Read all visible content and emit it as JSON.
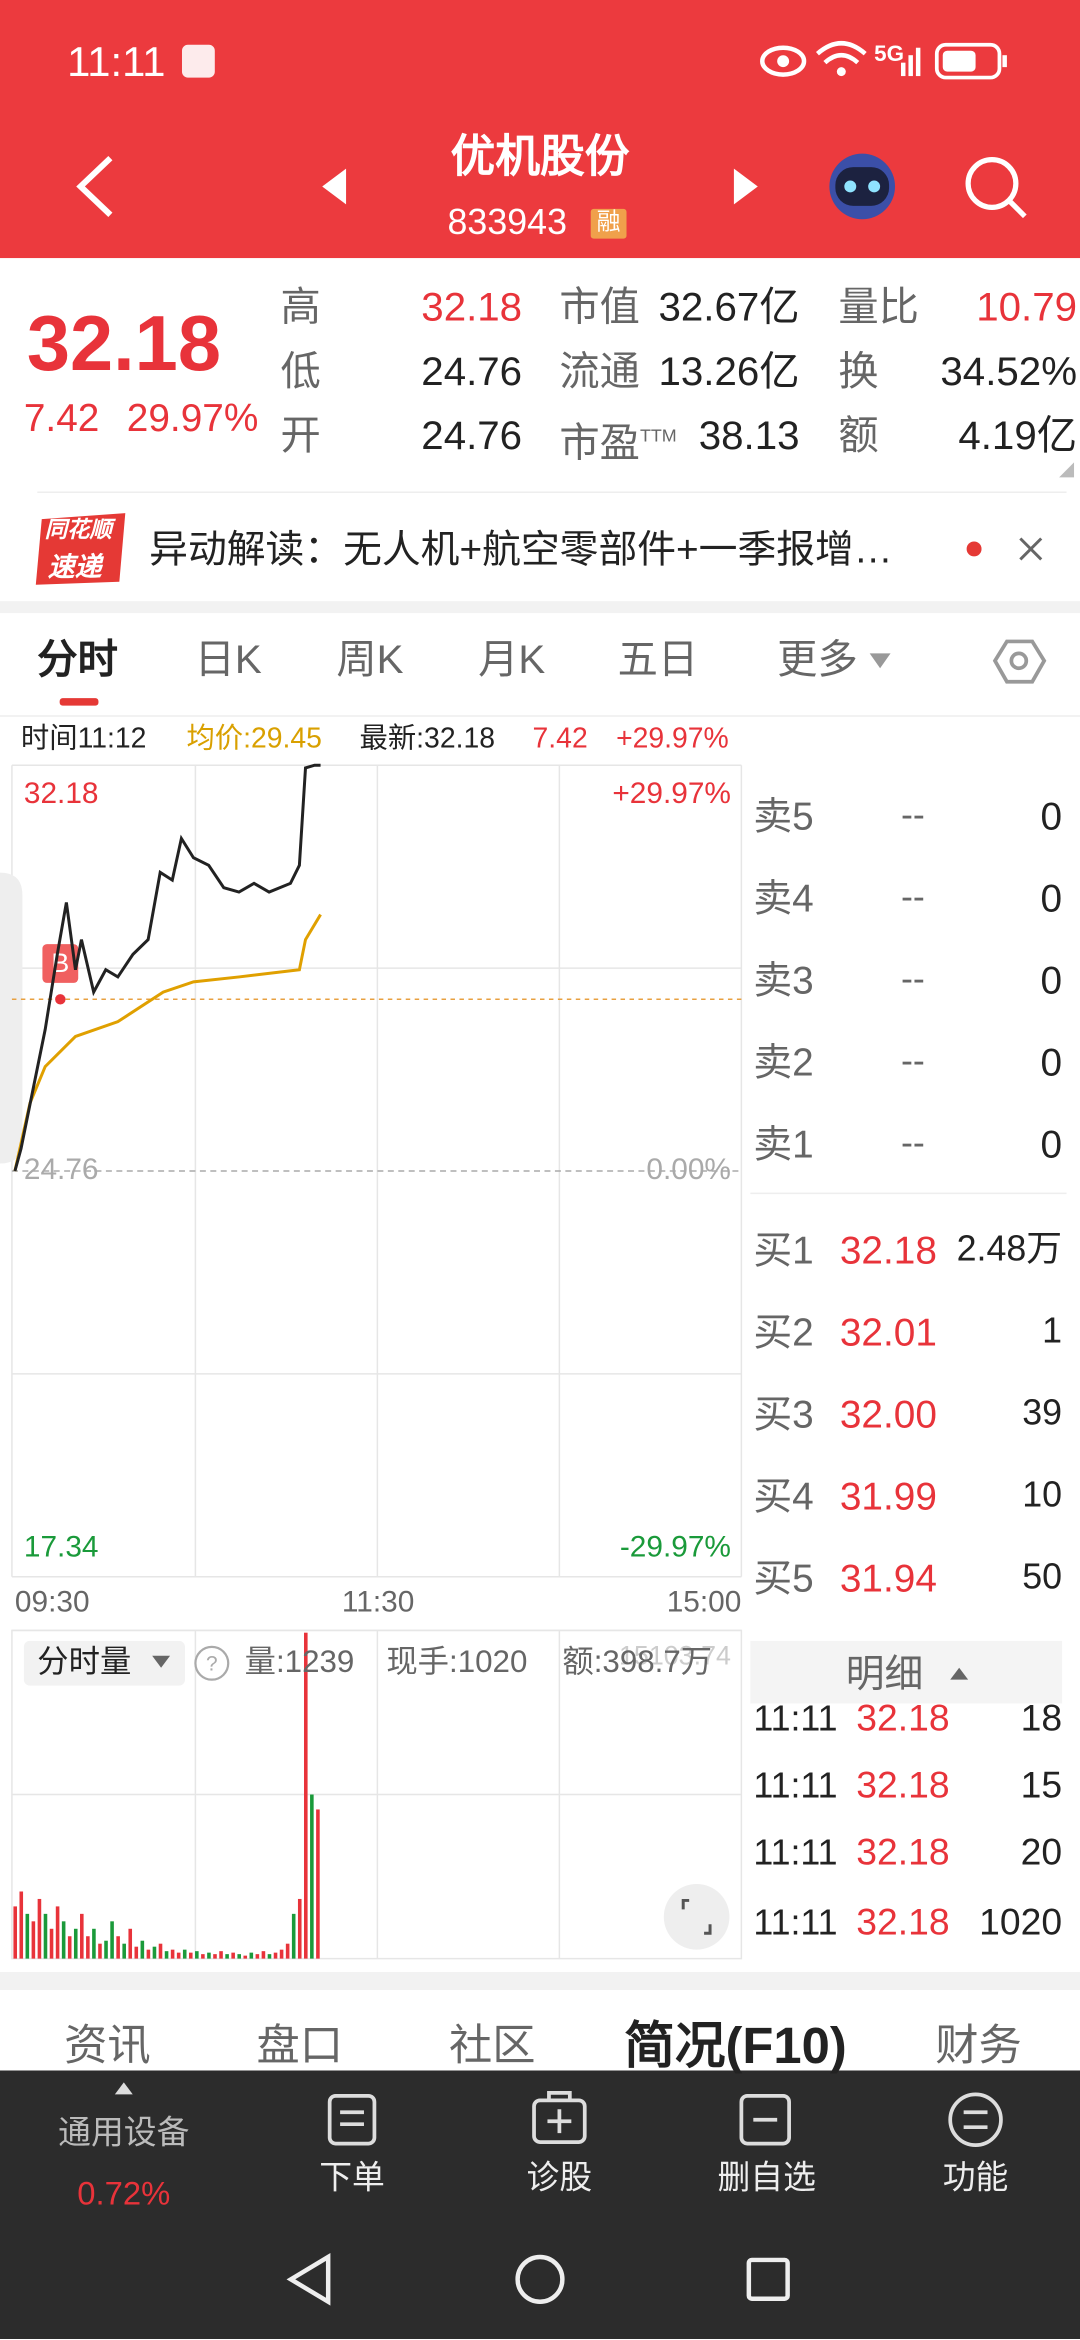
{
  "status_bar": {
    "time": "11:11",
    "network": "5G"
  },
  "header": {
    "title": "优机股份",
    "code": "833943",
    "badge": "融"
  },
  "quote": {
    "price": "32.18",
    "change": "7.42",
    "change_pct": "29.97%",
    "stats": [
      [
        {
          "label": "高",
          "value": "32.18"
        },
        {
          "label": "市值",
          "value": "32.67亿"
        },
        {
          "label": "量比",
          "value": "10.79"
        }
      ],
      [
        {
          "label": "低",
          "value": "24.76"
        },
        {
          "label": "流通",
          "value": "13.26亿"
        },
        {
          "label": "换",
          "value": "34.52%"
        }
      ],
      [
        {
          "label": "开",
          "value": "24.76"
        },
        {
          "label": "市盈",
          "sup": "TTM",
          "value": "38.13"
        },
        {
          "label": "额",
          "value": "4.19亿"
        }
      ]
    ]
  },
  "news": {
    "logo_top": "同花顺",
    "logo_bottom": "速递",
    "text": "异动解读：无人机+航空零部件+一季报增…"
  },
  "tabs": [
    "分时",
    "日K",
    "周K",
    "月K",
    "五日",
    "更多"
  ],
  "chart_info": {
    "time": "时间11:12",
    "avg": "均价:29.45",
    "latest": "最新:32.18",
    "change": "7.42",
    "change_pct": "+29.97%"
  },
  "intraday": {
    "ylim": [
      17.34,
      32.18
    ],
    "yticks": [
      17.34,
      24.76,
      32.18
    ],
    "pct_ticks": [
      "-29.97%",
      "0.00%",
      "+29.97%"
    ],
    "xlim": [
      0,
      240
    ],
    "xticks": [
      "09:30",
      "11:30",
      "15:00"
    ],
    "marker": {
      "label": "B",
      "x": 15,
      "value": 27.9
    },
    "price": {
      "x": [
        0,
        2,
        6,
        10,
        14,
        17,
        20,
        22,
        26,
        30,
        34,
        39,
        44,
        48,
        52,
        55,
        59,
        64,
        69,
        74,
        79,
        84,
        91,
        94,
        96,
        99,
        101
      ],
      "values": [
        24.76,
        25.17,
        26.26,
        27.35,
        28.72,
        29.67,
        28.44,
        28.99,
        28.03,
        28.44,
        28.31,
        28.72,
        28.99,
        30.22,
        30.08,
        30.84,
        30.49,
        30.35,
        29.94,
        29.86,
        30.02,
        29.86,
        30.02,
        30.35,
        32.13,
        32.18,
        32.18
      ]
    },
    "avg": {
      "x": [
        0,
        5,
        10,
        20,
        34,
        49,
        59,
        74,
        94,
        96,
        101
      ],
      "values": [
        24.76,
        26.0,
        26.67,
        27.22,
        27.49,
        28.03,
        28.22,
        28.31,
        28.44,
        28.99,
        29.45
      ]
    },
    "volume": {
      "ylim": [
        0,
        15103.74
      ],
      "yticks": [
        15103.74
      ],
      "x": [
        0,
        2,
        4,
        6,
        8,
        10,
        12,
        14,
        16,
        18,
        20,
        22,
        24,
        26,
        28,
        30,
        32,
        34,
        36,
        38,
        40,
        42,
        44,
        46,
        48,
        50,
        52,
        54,
        56,
        58,
        60,
        62,
        64,
        66,
        68,
        70,
        72,
        74,
        76,
        78,
        80,
        82,
        84,
        86,
        88,
        90,
        92,
        94,
        96,
        98,
        100
      ],
      "values": [
        2403,
        3089,
        2060,
        1716,
        2746,
        2060,
        1373,
        2403,
        1716,
        1030,
        1373,
        2060,
        1030,
        1373,
        687,
        824,
        1716,
        1030,
        687,
        1373,
        549,
        824,
        412,
        549,
        687,
        343,
        412,
        275,
        412,
        275,
        343,
        206,
        275,
        206,
        343,
        206,
        275,
        206,
        137,
        275,
        206,
        343,
        206,
        275,
        412,
        687,
        2060,
        2746,
        15000,
        7552,
        6865
      ],
      "sign": [
        1,
        1,
        -1,
        1,
        1,
        -1,
        1,
        1,
        -1,
        1,
        -1,
        1,
        1,
        -1,
        1,
        -1,
        -1,
        1,
        -1,
        1,
        1,
        -1,
        1,
        -1,
        1,
        -1,
        1,
        1,
        -1,
        1,
        -1,
        1,
        -1,
        1,
        1,
        -1,
        1,
        -1,
        1,
        -1,
        1,
        1,
        -1,
        1,
        1,
        1,
        -1,
        1,
        1,
        -1,
        1
      ]
    }
  },
  "volume_header": {
    "title": "分时量",
    "volume": "量:1239",
    "current": "现手:1020",
    "amount": "额:398.7万"
  },
  "order_book": {
    "sell": [
      {
        "label": "卖5",
        "price": "--",
        "volume": "0"
      },
      {
        "label": "卖4",
        "price": "--",
        "volume": "0"
      },
      {
        "label": "卖3",
        "price": "--",
        "volume": "0"
      },
      {
        "label": "卖2",
        "price": "--",
        "volume": "0"
      },
      {
        "label": "卖1",
        "price": "--",
        "volume": "0"
      }
    ],
    "buy": [
      {
        "label": "买1",
        "price": "32.18",
        "volume": "2.48万"
      },
      {
        "label": "买2",
        "price": "32.01",
        "volume": "1"
      },
      {
        "label": "买3",
        "price": "32.00",
        "volume": "39"
      },
      {
        "label": "买4",
        "price": "31.99",
        "volume": "10"
      },
      {
        "label": "买5",
        "price": "31.94",
        "volume": "50"
      }
    ]
  },
  "detail": {
    "title": "明细",
    "trades": [
      {
        "time": "11:11",
        "price": "32.18",
        "volume": "18"
      },
      {
        "time": "11:11",
        "price": "32.18",
        "volume": "15"
      },
      {
        "time": "11:11",
        "price": "32.18",
        "volume": "20"
      },
      {
        "time": "11:11",
        "price": "32.18",
        "volume": "1020"
      }
    ]
  },
  "bottom_tabs": [
    "资讯",
    "盘口",
    "社区",
    "简况(F10)",
    "财务"
  ],
  "nav": {
    "sector": "通用设备",
    "sector_change": "0.72%",
    "items": [
      "下单",
      "诊股",
      "删自选",
      "功能"
    ]
  }
}
